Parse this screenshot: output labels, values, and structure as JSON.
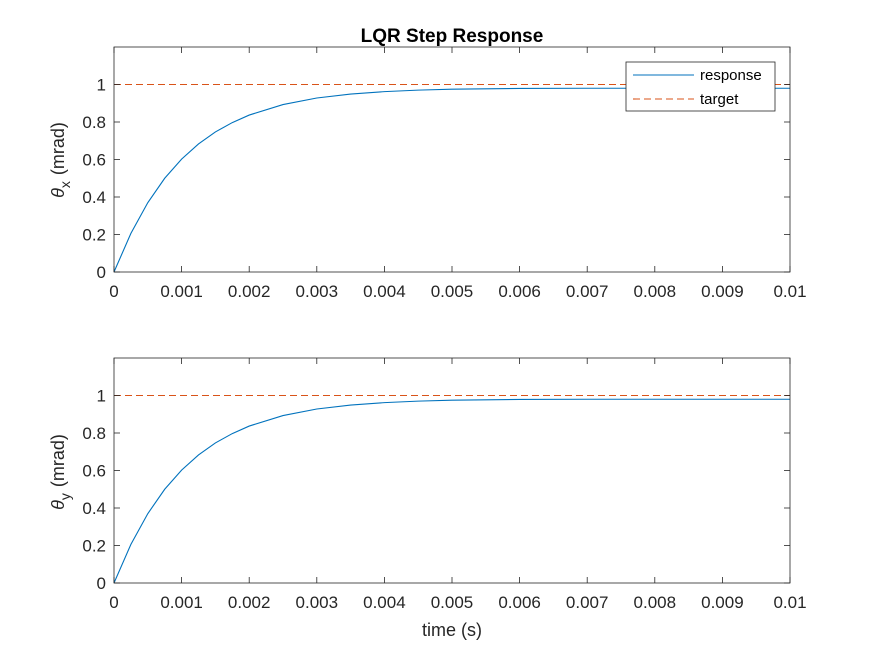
{
  "colors": {
    "response": "#0072BD",
    "target": "#D95319",
    "axis": "#262626",
    "background": "#ffffff"
  },
  "chart_data": [
    {
      "type": "line",
      "title": "LQR Step Response",
      "ylabel_symbol": "θ",
      "ylabel_subscript": "x",
      "ylabel_unit": "(mrad)",
      "xlim": [
        0,
        0.01
      ],
      "ylim": [
        0,
        1.2
      ],
      "xticks": [
        0,
        0.001,
        0.002,
        0.003,
        0.004,
        0.005,
        0.006,
        0.007,
        0.008,
        0.009,
        0.01
      ],
      "xtick_labels": [
        "0",
        "0.001",
        "0.002",
        "0.003",
        "0.004",
        "0.005",
        "0.006",
        "0.007",
        "0.008",
        "0.009",
        "0.01"
      ],
      "yticks": [
        0,
        0.2,
        0.4,
        0.6,
        0.8,
        1
      ],
      "ytick_labels": [
        "0",
        "0.2",
        "0.4",
        "0.6",
        "0.8",
        "1"
      ],
      "grid": false,
      "legend": {
        "location": "top-right",
        "entries": [
          "response",
          "target"
        ]
      },
      "series": [
        {
          "name": "response",
          "style": "solid",
          "x": [
            0,
            0.00025,
            0.0005,
            0.00075,
            0.001,
            0.00125,
            0.0015,
            0.00175,
            0.002,
            0.0025,
            0.003,
            0.0035,
            0.004,
            0.0045,
            0.005,
            0.006,
            0.007,
            0.008,
            0.009,
            0.01
          ],
          "y": [
            0,
            0.206,
            0.37,
            0.5,
            0.602,
            0.683,
            0.747,
            0.797,
            0.837,
            0.893,
            0.928,
            0.949,
            0.962,
            0.97,
            0.975,
            0.979,
            0.98,
            0.98,
            0.98,
            0.98
          ]
        },
        {
          "name": "target",
          "style": "dashed",
          "x": [
            0,
            0.01
          ],
          "y": [
            1,
            1
          ]
        }
      ]
    },
    {
      "type": "line",
      "title": "",
      "xlabel": "time (s)",
      "ylabel_symbol": "θ",
      "ylabel_subscript": "y",
      "ylabel_unit": "(mrad)",
      "xlim": [
        0,
        0.01
      ],
      "ylim": [
        0,
        1.2
      ],
      "xticks": [
        0,
        0.001,
        0.002,
        0.003,
        0.004,
        0.005,
        0.006,
        0.007,
        0.008,
        0.009,
        0.01
      ],
      "xtick_labels": [
        "0",
        "0.001",
        "0.002",
        "0.003",
        "0.004",
        "0.005",
        "0.006",
        "0.007",
        "0.008",
        "0.009",
        "0.01"
      ],
      "yticks": [
        0,
        0.2,
        0.4,
        0.6,
        0.8,
        1
      ],
      "ytick_labels": [
        "0",
        "0.2",
        "0.4",
        "0.6",
        "0.8",
        "1"
      ],
      "grid": false,
      "series": [
        {
          "style": "solid",
          "x": [
            0,
            0.00025,
            0.0005,
            0.00075,
            0.001,
            0.00125,
            0.0015,
            0.00175,
            0.002,
            0.0025,
            0.003,
            0.0035,
            0.004,
            0.0045,
            0.005,
            0.006,
            0.007,
            0.008,
            0.009,
            0.01
          ],
          "y": [
            0,
            0.206,
            0.37,
            0.5,
            0.602,
            0.683,
            0.747,
            0.797,
            0.837,
            0.893,
            0.928,
            0.949,
            0.962,
            0.97,
            0.975,
            0.979,
            0.98,
            0.98,
            0.98,
            0.98
          ]
        },
        {
          "style": "dashed",
          "x": [
            0,
            0.01
          ],
          "y": [
            1,
            1
          ]
        }
      ]
    }
  ]
}
